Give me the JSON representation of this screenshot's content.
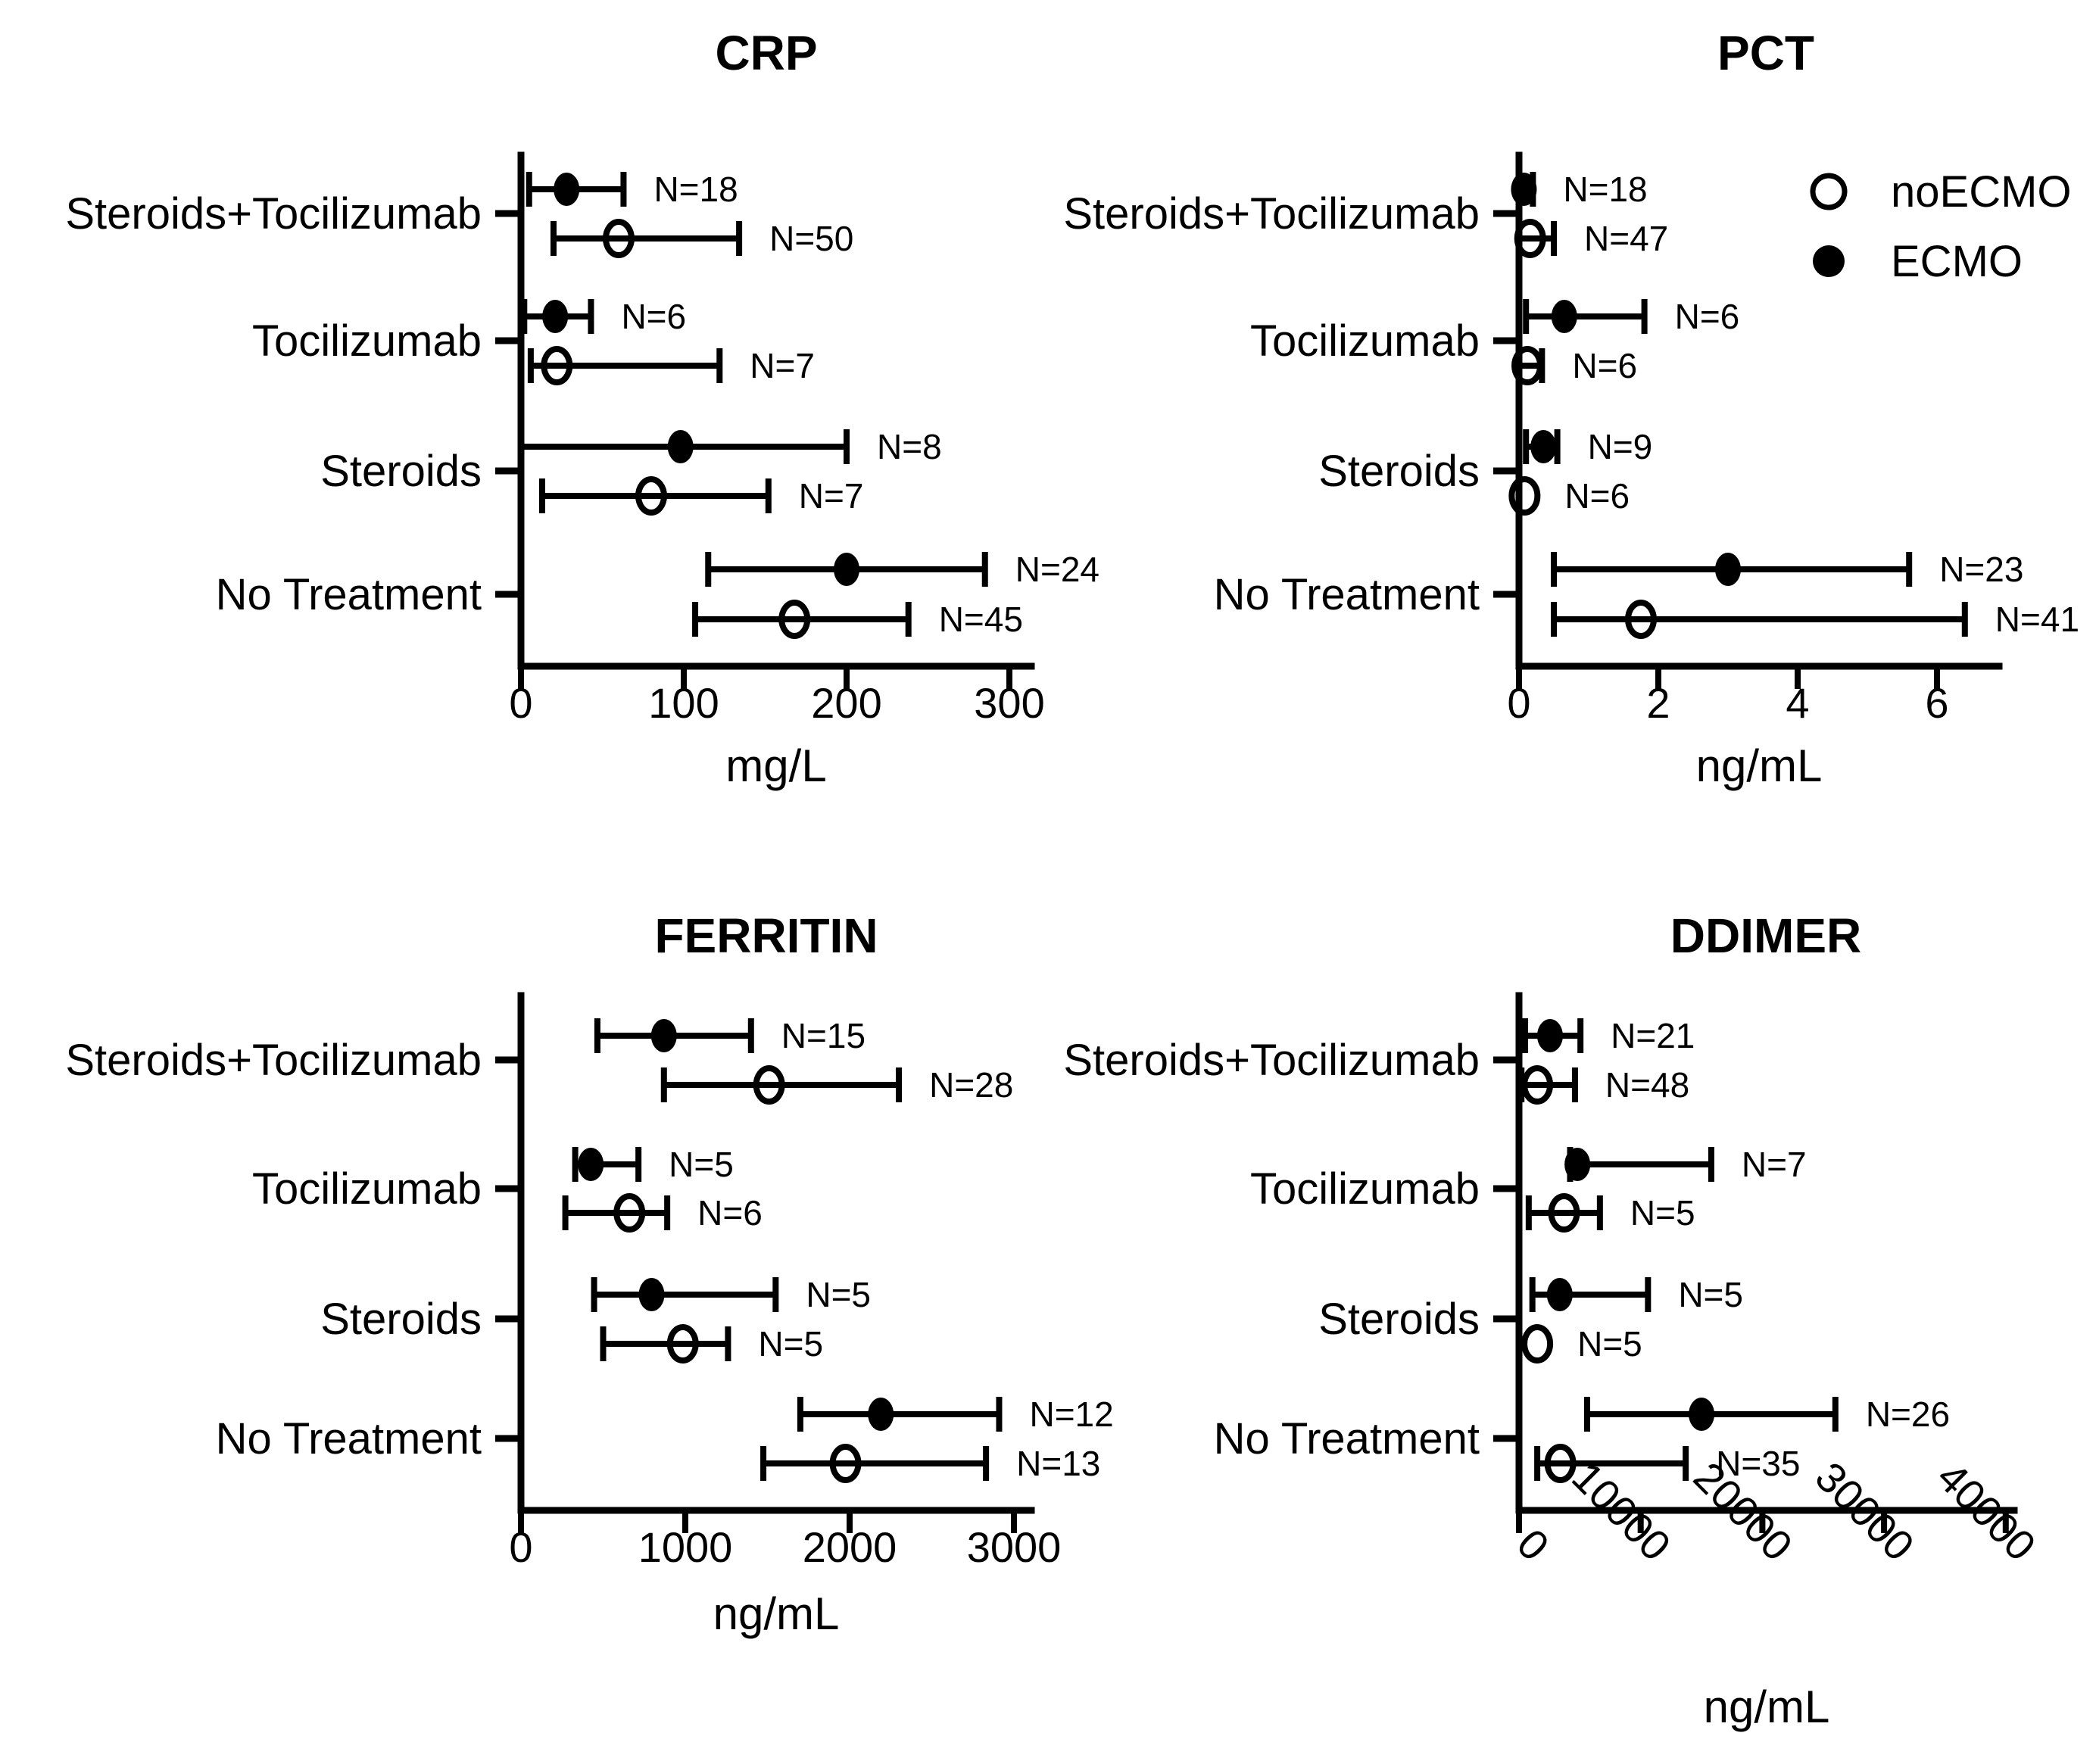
{
  "colors": {
    "ink": "#000000",
    "background": "#ffffff"
  },
  "legend": {
    "items": [
      {
        "label": "noECMO",
        "marker": "open"
      },
      {
        "label": "ECMO",
        "marker": "filled"
      }
    ]
  },
  "chart_data": [
    {
      "type": "scatter",
      "title": "CRP",
      "xlabel": "mg/L",
      "xticks": [
        0,
        100,
        200,
        300
      ],
      "xlim": [
        0,
        313
      ],
      "grid": false,
      "legend_position": "top-right-of-PCT-panel",
      "categories": [
        "Steroids+Tocilizumab",
        "Tocilizumab",
        "Steroids",
        "No Treatment"
      ],
      "series": [
        {
          "name": "ECMO",
          "marker": "filled",
          "points": [
            {
              "category": "Steroids+Tocilizumab",
              "value": 28,
              "lo": 5,
              "hi": 63,
              "label": "N=18"
            },
            {
              "category": "Tocilizumab",
              "value": 21,
              "lo": 2,
              "hi": 43,
              "label": "N=6"
            },
            {
              "category": "Steroids",
              "value": 98,
              "lo": 0,
              "hi": 200,
              "label": "N=8"
            },
            {
              "category": "No Treatment",
              "value": 200,
              "lo": 115,
              "hi": 285,
              "label": "N=24"
            }
          ]
        },
        {
          "name": "noECMO",
          "marker": "open",
          "points": [
            {
              "category": "Steroids+Tocilizumab",
              "value": 60,
              "lo": 20,
              "hi": 134,
              "label": "N=50"
            },
            {
              "category": "Tocilizumab",
              "value": 22,
              "lo": 6,
              "hi": 122,
              "label": "N=7"
            },
            {
              "category": "Steroids",
              "value": 80,
              "lo": 13,
              "hi": 152,
              "label": "N=7"
            },
            {
              "category": "No Treatment",
              "value": 168,
              "lo": 107,
              "hi": 238,
              "label": "N=45"
            }
          ]
        }
      ]
    },
    {
      "type": "scatter",
      "title": "PCT",
      "xlabel": "ng/mL",
      "xticks": [
        0,
        2,
        4,
        6
      ],
      "xlim": [
        0,
        6.9
      ],
      "grid": false,
      "categories": [
        "Steroids+Tocilizumab",
        "Tocilizumab",
        "Steroids",
        "No Treatment"
      ],
      "series": [
        {
          "name": "ECMO",
          "marker": "filled",
          "points": [
            {
              "category": "Steroids+Tocilizumab",
              "value": 0.07,
              "lo": 0,
              "hi": 0.2,
              "label": "N=18"
            },
            {
              "category": "Tocilizumab",
              "value": 0.65,
              "lo": 0.1,
              "hi": 1.8,
              "label": "N=6"
            },
            {
              "category": "Steroids",
              "value": 0.35,
              "lo": 0.1,
              "hi": 0.55,
              "label": "N=9"
            },
            {
              "category": "No Treatment",
              "value": 3.0,
              "lo": 0.5,
              "hi": 5.6,
              "label": "N=23"
            }
          ]
        },
        {
          "name": "noECMO",
          "marker": "open",
          "points": [
            {
              "category": "Steroids+Tocilizumab",
              "value": 0.16,
              "lo": 0,
              "hi": 0.5,
              "label": "N=47"
            },
            {
              "category": "Tocilizumab",
              "value": 0.12,
              "lo": 0,
              "hi": 0.33,
              "label": "N=6"
            },
            {
              "category": "Steroids",
              "value": 0.08,
              "lo": null,
              "hi": null,
              "label": "N=6"
            },
            {
              "category": "No Treatment",
              "value": 1.75,
              "lo": 0.5,
              "hi": 6.4,
              "label": "N=41"
            }
          ]
        }
      ]
    },
    {
      "type": "scatter",
      "title": "FERRITIN",
      "xlabel": "ng/mL",
      "xticks": [
        0,
        1000,
        2000,
        3000
      ],
      "xlim": [
        0,
        3100
      ],
      "grid": false,
      "categories": [
        "Steroids+Tocilizumab",
        "Tocilizumab",
        "Steroids",
        "No Treatment"
      ],
      "series": [
        {
          "name": "ECMO",
          "marker": "filled",
          "points": [
            {
              "category": "Steroids+Tocilizumab",
              "value": 870,
              "lo": 465,
              "hi": 1400,
              "label": "N=15"
            },
            {
              "category": "Tocilizumab",
              "value": 425,
              "lo": 330,
              "hi": 715,
              "label": "N=5"
            },
            {
              "category": "Steroids",
              "value": 795,
              "lo": 445,
              "hi": 1550,
              "label": "N=5"
            },
            {
              "category": "No Treatment",
              "value": 2190,
              "lo": 1700,
              "hi": 2910,
              "label": "N=12"
            }
          ]
        },
        {
          "name": "noECMO",
          "marker": "open",
          "points": [
            {
              "category": "Steroids+Tocilizumab",
              "value": 1510,
              "lo": 870,
              "hi": 2300,
              "label": "N=28"
            },
            {
              "category": "Tocilizumab",
              "value": 660,
              "lo": 270,
              "hi": 890,
              "label": "N=6"
            },
            {
              "category": "Steroids",
              "value": 985,
              "lo": 500,
              "hi": 1260,
              "label": "N=5"
            },
            {
              "category": "No Treatment",
              "value": 1975,
              "lo": 1475,
              "hi": 2830,
              "label": "N=13"
            }
          ]
        }
      ]
    },
    {
      "type": "scatter",
      "title": "DDIMER",
      "xlabel": "ng/mL",
      "xticks": [
        0,
        10000,
        20000,
        30000,
        40000
      ],
      "xlim": [
        0,
        40700
      ],
      "grid": false,
      "rotated_tick_labels": true,
      "categories": [
        "Steroids+Tocilizumab",
        "Tocilizumab",
        "Steroids",
        "No Treatment"
      ],
      "series": [
        {
          "name": "ECMO",
          "marker": "filled",
          "points": [
            {
              "category": "Steroids+Tocilizumab",
              "value": 2550,
              "lo": 500,
              "hi": 5050,
              "label": "N=21"
            },
            {
              "category": "Tocilizumab",
              "value": 4800,
              "lo": 4200,
              "hi": 15800,
              "label": "N=7"
            },
            {
              "category": "Steroids",
              "value": 3350,
              "lo": 1100,
              "hi": 10600,
              "label": "N=5"
            },
            {
              "category": "No Treatment",
              "value": 15000,
              "lo": 5600,
              "hi": 26000,
              "label": "N=26"
            }
          ]
        },
        {
          "name": "noECMO",
          "marker": "open",
          "points": [
            {
              "category": "Steroids+Tocilizumab",
              "value": 1500,
              "lo": 200,
              "hi": 4600,
              "label": "N=48"
            },
            {
              "category": "Tocilizumab",
              "value": 3700,
              "lo": 800,
              "hi": 6650,
              "label": "N=5"
            },
            {
              "category": "Steroids",
              "value": 1500,
              "lo": null,
              "hi": null,
              "label": "N=5"
            },
            {
              "category": "No Treatment",
              "value": 3400,
              "lo": 1500,
              "hi": 13700,
              "label": "N=35"
            }
          ]
        }
      ]
    }
  ]
}
